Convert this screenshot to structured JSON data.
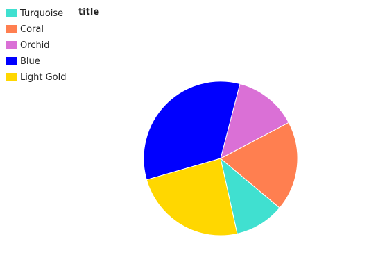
{
  "chart_data": {
    "type": "pie",
    "title": "title",
    "legend_placement": "top-left",
    "slices": [
      {
        "name": "Turquoise",
        "value": 9.8,
        "color": "#40e0d0"
      },
      {
        "name": "Coral",
        "value": 17.6,
        "color": "#ff7f50"
      },
      {
        "name": "Orchid",
        "value": 12.4,
        "color": "#da70d6"
      },
      {
        "name": "Blue",
        "value": 31.4,
        "color": "#0000ff"
      },
      {
        "name": "Light Gold",
        "value": 22.5,
        "color": "#ffd700"
      }
    ]
  }
}
